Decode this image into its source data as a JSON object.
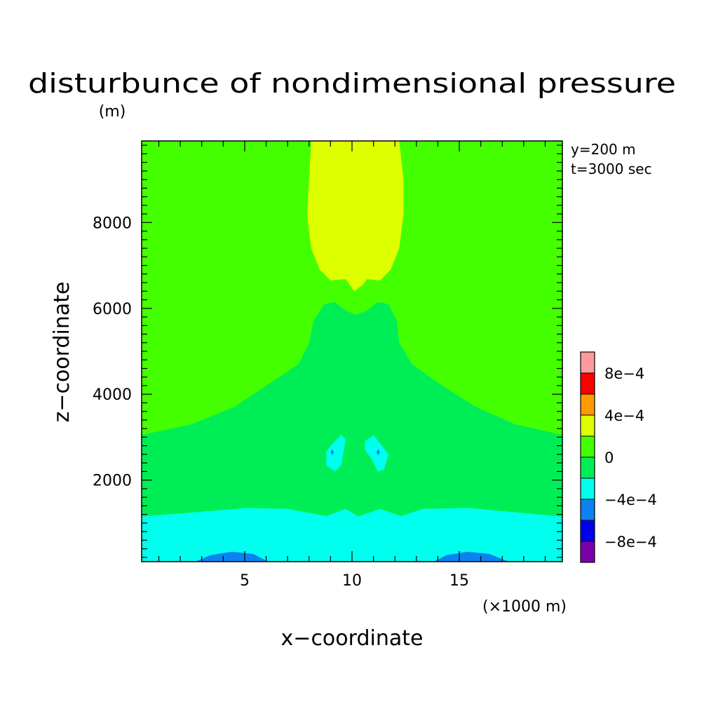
{
  "chart_data": {
    "type": "contour",
    "title": "disturbunce of nondimensional pressure",
    "y_unit_label": "(m)",
    "xlabel": "x−coordinate",
    "ylabel": "z−coordinate",
    "x_unit_label": "(×1000 m)",
    "annotations": [
      "y=200 m",
      "t=3000 sec"
    ],
    "xlim": [
      0.2,
      19.8
    ],
    "ylim": [
      100,
      9900
    ],
    "x_ticks": [
      5,
      10,
      15
    ],
    "x_tick_labels": [
      "5",
      "10",
      "15"
    ],
    "y_ticks": [
      2000,
      4000,
      6000,
      8000
    ],
    "y_tick_labels": [
      "2000",
      "4000",
      "6000",
      "8000"
    ],
    "colorbar": {
      "tick_labels": [
        "8e−4",
        "4e−4",
        "0",
        "−4e−4",
        "−8e−4"
      ],
      "tick_values": [
        0.0008,
        0.0004,
        0,
        -0.0004,
        -0.0008
      ],
      "levels": [
        -0.001,
        -0.0008,
        -0.0006,
        -0.0004,
        -0.0002,
        0,
        0.0002,
        0.0004,
        0.0006,
        0.0008,
        0.001
      ],
      "colors": [
        "#7b00a8",
        "#0000ee",
        "#0a82f0",
        "#00ffee",
        "#00ee55",
        "#44ff00",
        "#ddff00",
        "#ff9900",
        "#ff0000",
        "#ff9a9a"
      ]
    },
    "regions": [
      {
        "name": "background",
        "color": "#44ff00",
        "range": [
          0,
          0.0002
        ],
        "points": [
          [
            0.2,
            100
          ],
          [
            19.8,
            100
          ],
          [
            19.8,
            9900
          ],
          [
            0.2,
            9900
          ]
        ]
      },
      {
        "name": "upper-positive-plume",
        "color": "#ddff00",
        "range": [
          0.0002,
          0.0004
        ],
        "points": [
          [
            8.1,
            9900
          ],
          [
            12.2,
            9900
          ],
          [
            12.4,
            9000
          ],
          [
            12.4,
            8200
          ],
          [
            12.2,
            7400
          ],
          [
            11.8,
            6900
          ],
          [
            11.3,
            6650
          ],
          [
            10.7,
            6680
          ],
          [
            10.5,
            6550
          ],
          [
            10.1,
            6400
          ],
          [
            9.9,
            6550
          ],
          [
            9.7,
            6680
          ],
          [
            9.0,
            6650
          ],
          [
            8.5,
            6900
          ],
          [
            8.1,
            7400
          ],
          [
            7.9,
            8200
          ],
          [
            8.0,
            9000
          ]
        ]
      },
      {
        "name": "central-band",
        "color": "#00ee55",
        "range": [
          0,
          -0.0002
        ],
        "points": [
          [
            0.2,
            3050
          ],
          [
            2.5,
            3300
          ],
          [
            4.5,
            3700
          ],
          [
            6.0,
            4200
          ],
          [
            7.5,
            4700
          ],
          [
            8.0,
            5200
          ],
          [
            8.2,
            5700
          ],
          [
            8.7,
            6100
          ],
          [
            9.2,
            6150
          ],
          [
            9.7,
            5950
          ],
          [
            10.2,
            5850
          ],
          [
            10.7,
            5950
          ],
          [
            11.2,
            6150
          ],
          [
            11.7,
            6100
          ],
          [
            12.1,
            5700
          ],
          [
            12.2,
            5200
          ],
          [
            12.8,
            4700
          ],
          [
            14.2,
            4200
          ],
          [
            15.8,
            3700
          ],
          [
            17.6,
            3300
          ],
          [
            19.8,
            3050
          ],
          [
            19.8,
            1150
          ],
          [
            15.4,
            1350
          ],
          [
            13.3,
            1330
          ],
          [
            12.3,
            1160
          ],
          [
            11.3,
            1330
          ],
          [
            10.3,
            1150
          ],
          [
            9.7,
            1330
          ],
          [
            8.8,
            1160
          ],
          [
            7.0,
            1330
          ],
          [
            5.1,
            1350
          ],
          [
            0.2,
            1150
          ]
        ]
      },
      {
        "name": "lower-negative-band",
        "color": "#00ffee",
        "range": [
          -0.0002,
          -0.0004
        ],
        "points": [
          [
            0.2,
            1150
          ],
          [
            5.1,
            1350
          ],
          [
            7.0,
            1330
          ],
          [
            8.8,
            1160
          ],
          [
            9.7,
            1330
          ],
          [
            10.3,
            1150
          ],
          [
            11.3,
            1330
          ],
          [
            12.3,
            1160
          ],
          [
            13.3,
            1330
          ],
          [
            15.4,
            1350
          ],
          [
            19.8,
            1150
          ],
          [
            19.8,
            100
          ],
          [
            0.2,
            100
          ]
        ]
      },
      {
        "name": "cyan-spot-left",
        "color": "#00ffee",
        "range": [
          -0.0002,
          -0.0004
        ],
        "points": [
          [
            9.0,
            2800
          ],
          [
            9.5,
            3050
          ],
          [
            9.7,
            2950
          ],
          [
            9.6,
            2650
          ],
          [
            9.5,
            2350
          ],
          [
            9.2,
            2200
          ],
          [
            8.8,
            2350
          ],
          [
            8.8,
            2650
          ]
        ]
      },
      {
        "name": "cyan-spot-right",
        "color": "#00ffee",
        "range": [
          -0.0002,
          -0.0004
        ],
        "points": [
          [
            10.6,
            2900
          ],
          [
            11.0,
            3050
          ],
          [
            11.4,
            2800
          ],
          [
            11.7,
            2600
          ],
          [
            11.5,
            2250
          ],
          [
            11.2,
            2200
          ],
          [
            10.9,
            2500
          ],
          [
            10.6,
            2700
          ]
        ]
      },
      {
        "name": "blue-patch-left",
        "color": "#0a82f0",
        "range": [
          -0.0004,
          -0.0006
        ],
        "points": [
          [
            2.7,
            100
          ],
          [
            3.4,
            250
          ],
          [
            4.4,
            330
          ],
          [
            5.4,
            280
          ],
          [
            6.1,
            100
          ]
        ]
      },
      {
        "name": "blue-patch-right",
        "color": "#0a82f0",
        "range": [
          -0.0004,
          -0.0006
        ],
        "points": [
          [
            13.8,
            100
          ],
          [
            14.4,
            250
          ],
          [
            15.4,
            330
          ],
          [
            16.4,
            280
          ],
          [
            17.3,
            100
          ]
        ]
      },
      {
        "name": "blue-dot-left",
        "color": "#0a82f0",
        "range": [
          -0.0004,
          -0.0006
        ],
        "points": [
          [
            9.08,
            2720
          ],
          [
            9.16,
            2650
          ],
          [
            9.08,
            2580
          ],
          [
            9.0,
            2650
          ]
        ]
      },
      {
        "name": "blue-dot-right",
        "color": "#0a82f0",
        "range": [
          -0.0004,
          -0.0006
        ],
        "points": [
          [
            11.22,
            2720
          ],
          [
            11.3,
            2650
          ],
          [
            11.22,
            2580
          ],
          [
            11.14,
            2650
          ]
        ]
      }
    ]
  }
}
